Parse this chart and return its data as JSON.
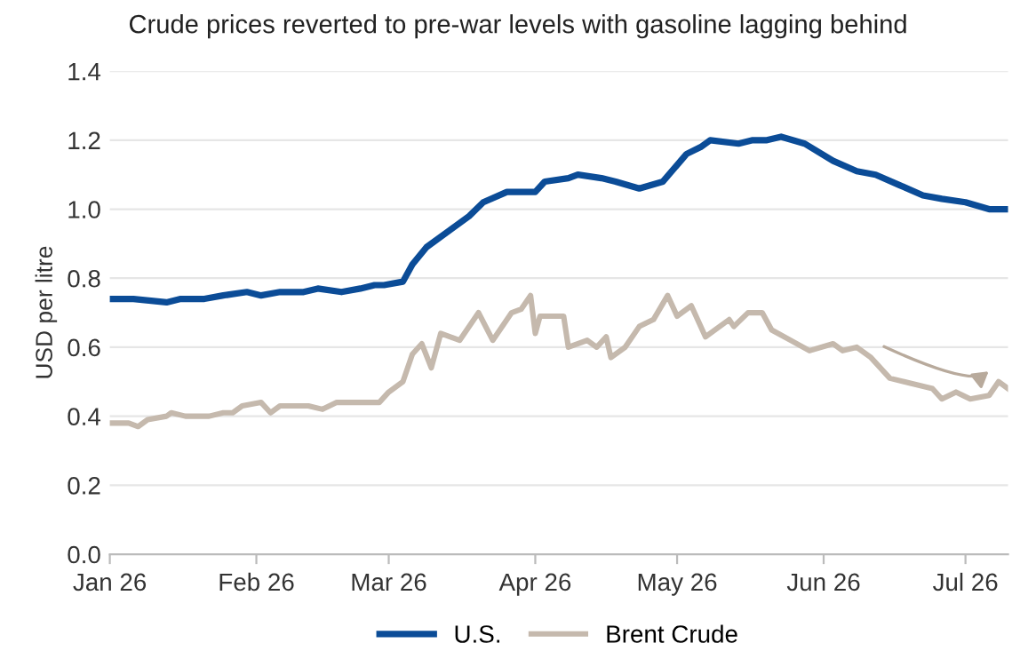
{
  "chart_data": {
    "type": "line",
    "title": "Crude prices reverted to pre-war levels with gasoline lagging behind",
    "ylabel": "USD per litre",
    "xlim": [
      "2026-01-01",
      "2026-07-10"
    ],
    "xticks": [
      {
        "value": "2026-01-01",
        "label": "Jan 26"
      },
      {
        "value": "2026-02-01",
        "label": "Feb 26"
      },
      {
        "value": "2026-03-01",
        "label": "Mar 26"
      },
      {
        "value": "2026-04-01",
        "label": "Apr 26"
      },
      {
        "value": "2026-05-01",
        "label": "May 26"
      },
      {
        "value": "2026-06-01",
        "label": "Jun 26"
      },
      {
        "value": "2026-07-01",
        "label": "Jul 26"
      }
    ],
    "ylim": [
      0,
      1.4
    ],
    "yticks": [
      {
        "value": 0,
        "label": "0.0"
      },
      0.2,
      0.4,
      0.6,
      0.8,
      {
        "value": 1,
        "label": "1.0"
      },
      1.2,
      1.4
    ],
    "grid": "y",
    "legend": "bottom",
    "marker": "none",
    "line_style": "solid",
    "series": [
      {
        "name": "U.S.",
        "color": "#0b4c97",
        "x": [
          "2026-01-01",
          "2026-01-06",
          "2026-01-13",
          "2026-01-16",
          "2026-01-21",
          "2026-01-25",
          "2026-01-30",
          "2026-02-02",
          "2026-02-06",
          "2026-02-11",
          "2026-02-14",
          "2026-02-19",
          "2026-02-23",
          "2026-02-26",
          "2026-02-28",
          "2026-03-04",
          "2026-03-06",
          "2026-03-09",
          "2026-03-14",
          "2026-03-18",
          "2026-03-21",
          "2026-03-26",
          "2026-04-01",
          "2026-04-03",
          "2026-04-08",
          "2026-04-10",
          "2026-04-15",
          "2026-04-18",
          "2026-04-23",
          "2026-04-28",
          "2026-05-03",
          "2026-05-06",
          "2026-05-08",
          "2026-05-14",
          "2026-05-17",
          "2026-05-20",
          "2026-05-23",
          "2026-05-28",
          "2026-06-03",
          "2026-06-08",
          "2026-06-12",
          "2026-06-17",
          "2026-06-22",
          "2026-06-26",
          "2026-07-01",
          "2026-07-06",
          "2026-07-10"
        ],
        "values": [
          0.74,
          0.74,
          0.73,
          0.74,
          0.74,
          0.75,
          0.76,
          0.75,
          0.76,
          0.76,
          0.77,
          0.76,
          0.77,
          0.78,
          0.78,
          0.79,
          0.84,
          0.89,
          0.94,
          0.98,
          1.02,
          1.05,
          1.05,
          1.08,
          1.09,
          1.1,
          1.09,
          1.08,
          1.06,
          1.08,
          1.16,
          1.18,
          1.2,
          1.19,
          1.2,
          1.2,
          1.21,
          1.19,
          1.14,
          1.11,
          1.1,
          1.07,
          1.04,
          1.03,
          1.02,
          1.0,
          1.0
        ]
      },
      {
        "name": "Brent Crude",
        "color": "#c5b9ad",
        "x": [
          "2026-01-01",
          "2026-01-05",
          "2026-01-07",
          "2026-01-09",
          "2026-01-13",
          "2026-01-14",
          "2026-01-17",
          "2026-01-22",
          "2026-01-25",
          "2026-01-27",
          "2026-01-29",
          "2026-02-02",
          "2026-02-04",
          "2026-02-06",
          "2026-02-12",
          "2026-02-15",
          "2026-02-18",
          "2026-02-22",
          "2026-02-27",
          "2026-03-01",
          "2026-03-04",
          "2026-03-06",
          "2026-03-08",
          "2026-03-10",
          "2026-03-12",
          "2026-03-16",
          "2026-03-20",
          "2026-03-23",
          "2026-03-27",
          "2026-03-29",
          "2026-03-31",
          "2026-04-01",
          "2026-04-02",
          "2026-04-07",
          "2026-04-08",
          "2026-04-12",
          "2026-04-14",
          "2026-04-16",
          "2026-04-17",
          "2026-04-20",
          "2026-04-23",
          "2026-04-26",
          "2026-04-29",
          "2026-05-01",
          "2026-05-04",
          "2026-05-07",
          "2026-05-12",
          "2026-05-13",
          "2026-05-16",
          "2026-05-19",
          "2026-05-21",
          "2026-05-25",
          "2026-05-29",
          "2026-06-03",
          "2026-06-05",
          "2026-06-08",
          "2026-06-11",
          "2026-06-15",
          "2026-06-18",
          "2026-06-24",
          "2026-06-26",
          "2026-06-29",
          "2026-07-02",
          "2026-07-06",
          "2026-07-08",
          "2026-07-10"
        ],
        "values": [
          0.38,
          0.38,
          0.37,
          0.39,
          0.4,
          0.41,
          0.4,
          0.4,
          0.41,
          0.41,
          0.43,
          0.44,
          0.41,
          0.43,
          0.43,
          0.42,
          0.44,
          0.44,
          0.44,
          0.47,
          0.5,
          0.58,
          0.61,
          0.54,
          0.64,
          0.62,
          0.7,
          0.62,
          0.7,
          0.71,
          0.75,
          0.64,
          0.69,
          0.69,
          0.6,
          0.62,
          0.6,
          0.63,
          0.57,
          0.6,
          0.66,
          0.68,
          0.75,
          0.69,
          0.72,
          0.63,
          0.68,
          0.66,
          0.7,
          0.7,
          0.65,
          0.62,
          0.59,
          0.61,
          0.59,
          0.6,
          0.57,
          0.51,
          0.5,
          0.48,
          0.45,
          0.47,
          0.45,
          0.46,
          0.5,
          0.48
        ]
      }
    ]
  }
}
